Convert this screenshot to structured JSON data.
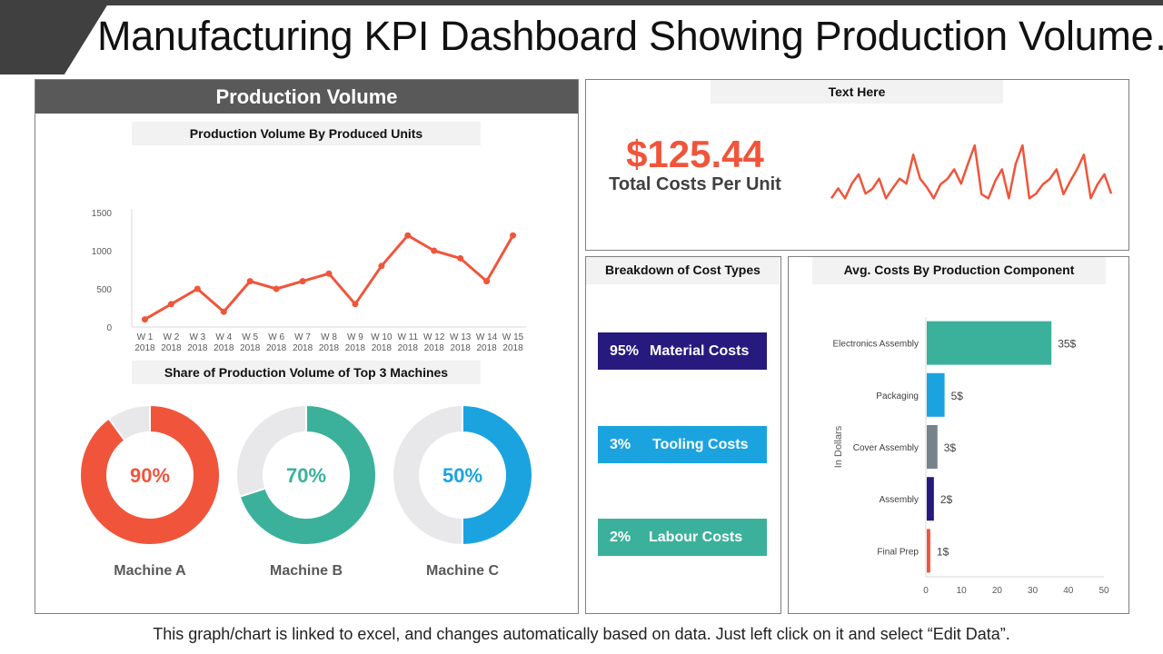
{
  "title": "Manufacturing KPI Dashboard Showing Production Volume…",
  "footer": "This graph/chart is linked to excel, and changes automatically based on data. Just left click on it and select “Edit Data”.",
  "colors": {
    "accent_red": "#f0553b",
    "teal": "#3bb19b",
    "blue": "#1ba3e0",
    "navy": "#271a7f",
    "gray_bar": "#76838a",
    "donut_track": "#e8e8ea",
    "header_dark": "#595959"
  },
  "production_volume": {
    "header": "Production Volume",
    "line_subtitle": "Production Volume By Produced Units",
    "donut_subtitle": "Share of Production Volume of Top 3 Machines"
  },
  "text_here_panel": {
    "subtitle": "Text Here",
    "value": "$125.44",
    "label": "Total Costs Per Unit"
  },
  "breakdown": {
    "subtitle": "Breakdown of Cost Types",
    "items": [
      {
        "pct": "95%",
        "label": "Material Costs",
        "color": "#271a7f"
      },
      {
        "pct": "3%",
        "label": "Tooling Costs",
        "color": "#1ba3e0"
      },
      {
        "pct": "2%",
        "label": "Labour Costs",
        "color": "#3bb19b"
      }
    ]
  },
  "avg_costs": {
    "subtitle": "Avg. Costs By Production Component"
  },
  "chart_data": [
    {
      "type": "line",
      "title": "Production Volume By Produced Units",
      "categories": [
        "W 1 2018",
        "W 2 2018",
        "W 3 2018",
        "W 4 2018",
        "W 5 2018",
        "W 6 2018",
        "W 7 2018",
        "W 8 2018",
        "W 9 2018",
        "W 10 2018",
        "W 11 2018",
        "W 12 2018",
        "W 13 2018",
        "W 14 2018",
        "W 15 2018"
      ],
      "category_lines": [
        [
          "W 1",
          "2018"
        ],
        [
          "W 2",
          "2018"
        ],
        [
          "W 3",
          "2018"
        ],
        [
          "W 4",
          "2018"
        ],
        [
          "W 5",
          "2018"
        ],
        [
          "W 6",
          "2018"
        ],
        [
          "W 7",
          "2018"
        ],
        [
          "W 8",
          "2018"
        ],
        [
          "W 9",
          "2018"
        ],
        [
          "W 10",
          "2018"
        ],
        [
          "W 11",
          "2018"
        ],
        [
          "W 12",
          "2018"
        ],
        [
          "W 13",
          "2018"
        ],
        [
          "W 14",
          "2018"
        ],
        [
          "W 15",
          "2018"
        ]
      ],
      "values": [
        100,
        300,
        500,
        200,
        600,
        500,
        600,
        700,
        300,
        800,
        1200,
        1000,
        900,
        600,
        1200
      ],
      "yticks": [
        0,
        500,
        1000,
        1500
      ],
      "ylim": [
        0,
        1500
      ],
      "xlabel": "",
      "ylabel": "",
      "color": "#f0553b",
      "grid": false
    },
    {
      "type": "pie",
      "title": "Share of Production Volume of Top 3 Machines",
      "donuts": [
        {
          "name": "Machine A",
          "value": 90,
          "label": "90%",
          "color": "#f0553b"
        },
        {
          "name": "Machine B",
          "value": 70,
          "label": "70%",
          "color": "#3bb19b"
        },
        {
          "name": "Machine C",
          "value": 50,
          "label": "50%",
          "color": "#1ba3e0"
        }
      ]
    },
    {
      "type": "line",
      "title": "Total Costs Per Unit trend (sparkline)",
      "values": [
        0.5,
        3.7,
        0.5,
        5.2,
        8.2,
        2.0,
        3.5,
        6.8,
        0.5,
        3.8,
        6.8,
        5.2,
        14.5,
        6.8,
        4.0,
        0.5,
        5.0,
        6.7,
        9.8,
        5.2,
        11.5,
        17.5,
        1.8,
        0.5,
        6.0,
        9.8,
        0.5,
        11.5,
        17.5,
        0.5,
        2.0,
        5.0,
        6.7,
        9.8,
        1.8,
        6.0,
        9.8,
        14.5,
        0.5,
        5.0,
        8.2,
        2.0
      ],
      "color": "#f0553b",
      "axes": false
    },
    {
      "type": "bar",
      "orientation": "horizontal",
      "title": "Avg. Costs By Production Component",
      "categories": [
        "Electronics Assembly",
        "Packaging",
        "Cover Assembly",
        "Assembly",
        "Final Prep"
      ],
      "values": [
        35,
        5,
        3,
        2,
        1
      ],
      "data_labels": [
        "35$",
        "5$",
        "3$",
        "2$",
        "1$"
      ],
      "colors": [
        "#3bb19b",
        "#1ba3e0",
        "#76838a",
        "#271a7f",
        "#f0553b"
      ],
      "xticks": [
        0,
        10,
        20,
        30,
        40,
        50
      ],
      "xlim": [
        0,
        50
      ],
      "ylabel": "In Dollars",
      "xlabel": ""
    }
  ]
}
